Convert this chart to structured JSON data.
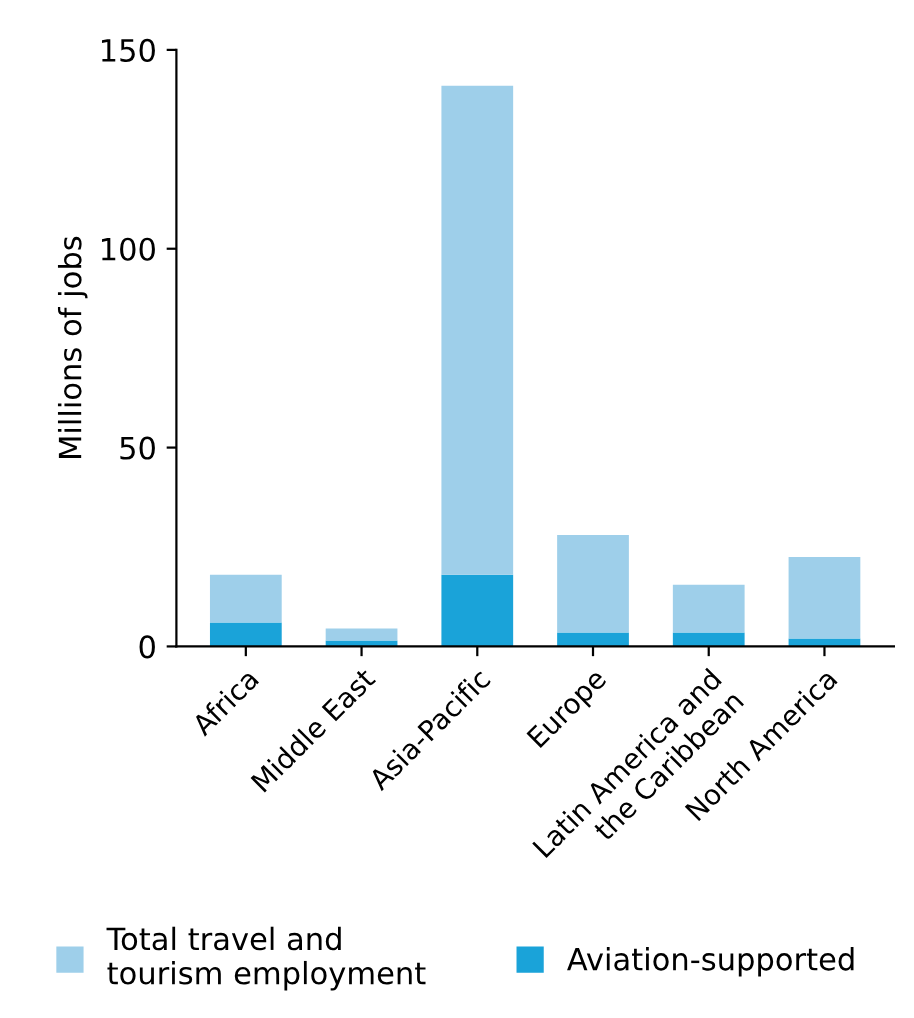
{
  "chart_data": {
    "type": "bar",
    "stacked": true,
    "ylabel": "Millions of jobs",
    "categories": [
      "Africa",
      "Middle East",
      "Asia-Pacific",
      "Europe",
      "Latin America and\nthe Caribbean",
      "North America"
    ],
    "series": [
      {
        "name": "Aviation-supported",
        "color": "#1aa3d9",
        "values": [
          6,
          1.5,
          18,
          3.5,
          3.5,
          2
        ]
      },
      {
        "name": "Total travel and\ntourism employment",
        "color": "#9ecfea",
        "values": [
          12,
          3,
          123,
          24.5,
          12,
          20.5
        ]
      }
    ],
    "ylim": [
      0,
      150
    ],
    "yticks": [
      0,
      50,
      100,
      150
    ],
    "grid": false,
    "legend": "bottom"
  }
}
